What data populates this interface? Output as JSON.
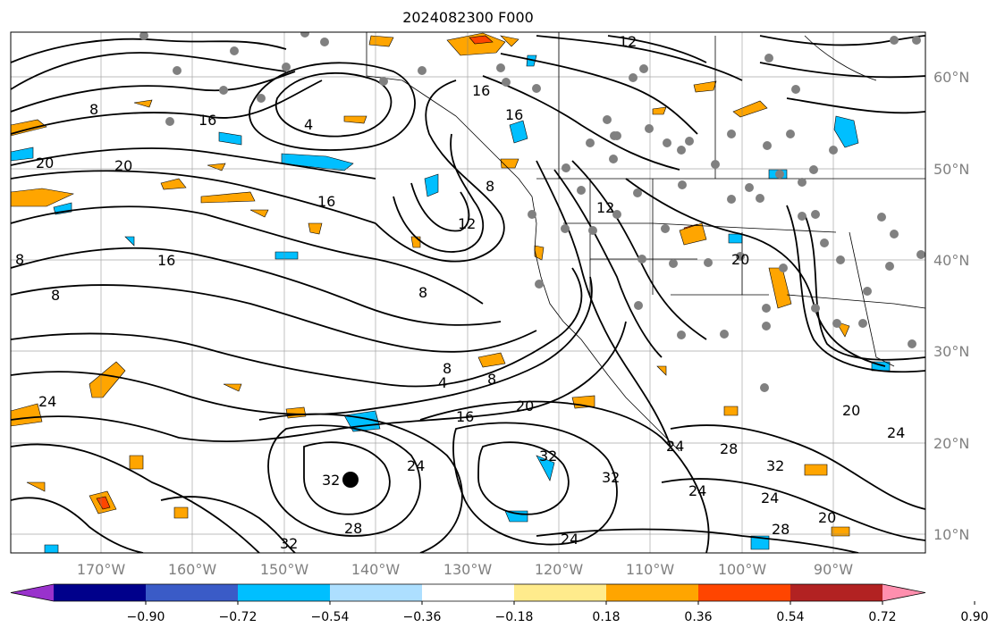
{
  "title": "2024082300 F000",
  "lat_labels": [
    "60°N",
    "50°N",
    "40°N",
    "30°N",
    "20°N",
    "10°N"
  ],
  "lon_labels": [
    "170°W",
    "160°W",
    "150°W",
    "140°W",
    "130°W",
    "120°W",
    "110°W",
    "100°W",
    "90°W"
  ],
  "colorbar": {
    "ticks": [
      "−0.90",
      "−0.72",
      "−0.54",
      "−0.36",
      "−0.18",
      "0.18",
      "0.36",
      "0.54",
      "0.72",
      "0.90"
    ],
    "colors": [
      "#9932CC",
      "#00008B",
      "#3A5BC7",
      "#00BFFF",
      "#ADDFFF",
      "#FFFFFF",
      "#FFEB8C",
      "#FFA500",
      "#FF4500",
      "#B22222",
      "#FF8FAE"
    ]
  },
  "contour_labels": [
    "12",
    "16",
    "16",
    "16",
    "4",
    "8",
    "16",
    "20",
    "20",
    "8",
    "12",
    "12",
    "16",
    "8",
    "8",
    "8",
    "8",
    "4",
    "8",
    "16",
    "20",
    "20",
    "24",
    "24",
    "28",
    "32",
    "32",
    "32",
    "24",
    "24",
    "28",
    "32",
    "24",
    "24",
    "28",
    "32",
    "20",
    "20",
    "24"
  ],
  "cyclone_marker": "tropical-cyclone-center"
}
